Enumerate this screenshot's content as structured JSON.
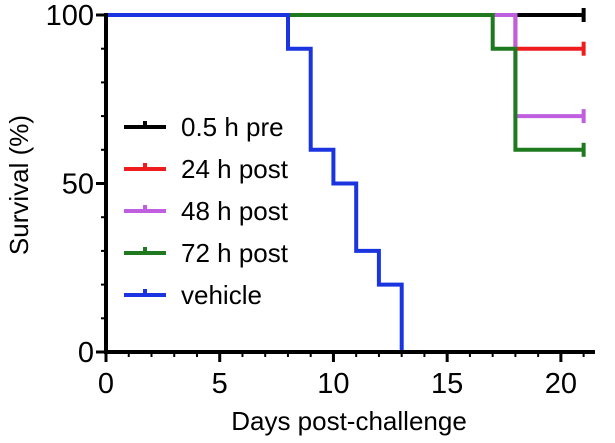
{
  "chart_data": {
    "type": "line",
    "subtype": "kaplan-meier step",
    "xlabel": "Days post-challenge",
    "ylabel": "Survival (%)",
    "xlim": [
      0,
      21.5
    ],
    "ylim": [
      0,
      100
    ],
    "x_ticks": [
      0,
      5,
      10,
      15,
      20
    ],
    "y_ticks": [
      0,
      50,
      100
    ],
    "grid": false,
    "legend_placement": "left",
    "series": [
      {
        "name": "0.5 h pre",
        "color": "#000000",
        "points": [
          [
            0,
            100
          ],
          [
            21,
            100
          ]
        ],
        "end_marker": true
      },
      {
        "name": "24 h post",
        "color": "#ee1c1c",
        "points": [
          [
            0,
            100
          ],
          [
            18,
            100
          ],
          [
            18,
            90
          ],
          [
            21,
            90
          ]
        ],
        "end_marker": true
      },
      {
        "name": "48 h post",
        "color": "#bf5fe0",
        "points": [
          [
            0,
            100
          ],
          [
            18,
            100
          ],
          [
            18,
            70
          ],
          [
            21,
            70
          ]
        ],
        "end_marker": true
      },
      {
        "name": "72 h post",
        "color": "#1f7a1f",
        "points": [
          [
            0,
            100
          ],
          [
            17,
            100
          ],
          [
            17,
            90
          ],
          [
            18,
            90
          ],
          [
            18,
            60
          ],
          [
            21,
            60
          ]
        ],
        "end_marker": true
      },
      {
        "name": "vehicle",
        "color": "#1a35e0",
        "points": [
          [
            0,
            100
          ],
          [
            8,
            100
          ],
          [
            8,
            90
          ],
          [
            9,
            90
          ],
          [
            9,
            60
          ],
          [
            10,
            60
          ],
          [
            10,
            50
          ],
          [
            11,
            50
          ],
          [
            11,
            30
          ],
          [
            12,
            30
          ],
          [
            12,
            20
          ],
          [
            13,
            20
          ],
          [
            13,
            0
          ]
        ],
        "end_marker": false
      }
    ]
  }
}
